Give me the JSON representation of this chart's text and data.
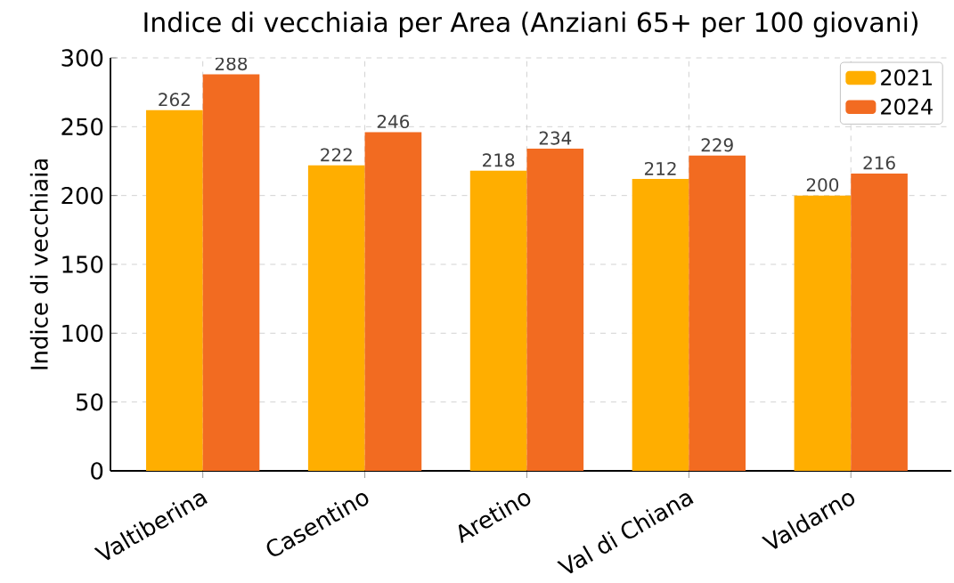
{
  "chart_data": {
    "type": "bar",
    "title": "Indice di vecchiaia per Area (Anziani 65+ per 100 giovani)",
    "ylabel": "Indice di vecchiaia",
    "categories": [
      "Valtiberina",
      "Casentino",
      "Aretino",
      "Val di Chiana",
      "Valdarno"
    ],
    "series": [
      {
        "name": "2021",
        "color": "#ffae00",
        "values": [
          262,
          222,
          218,
          212,
          200
        ]
      },
      {
        "name": "2024",
        "color": "#f26b21",
        "values": [
          288,
          246,
          234,
          229,
          216
        ]
      }
    ],
    "ylim": [
      0,
      300
    ],
    "yticks": [
      0,
      50,
      100,
      150,
      200,
      250,
      300
    ],
    "grid": true,
    "legend": "top right",
    "data_labels": true
  }
}
